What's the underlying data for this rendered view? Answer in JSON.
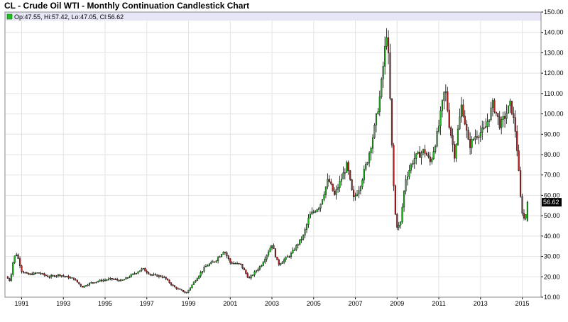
{
  "title": "CL - Crude Oil WTI - Monthly Continuation Candlestick Chart",
  "ohlc_summary": "Op:47.55, Hi:57.42, Lo:47.05, Cl:56.62",
  "last_price_label": "56.62",
  "colors": {
    "up": "#22bb22",
    "down": "#bb2222",
    "wick": "#000000",
    "grid": "#e3e3e3",
    "header_band": "#e6e6f7",
    "price_tag": "#000000"
  },
  "chart_data": {
    "type": "candlestick",
    "title": "CL - Crude Oil WTI - Monthly Continuation Candlestick Chart",
    "xlabel": "",
    "ylabel": "",
    "ylim": [
      10,
      150
    ],
    "xlim": [
      1990.2,
      2015.9
    ],
    "grid": true,
    "x_ticks": [
      "1991",
      "1993",
      "1995",
      "1997",
      "1999",
      "2001",
      "2003",
      "2005",
      "2007",
      "2009",
      "2011",
      "2013",
      "2015"
    ],
    "y_ticks": [
      "10.00",
      "20.00",
      "30.00",
      "40.00",
      "50.00",
      "60.00",
      "70.00",
      "80.00",
      "90.00",
      "100.00",
      "110.00",
      "120.00",
      "130.00",
      "140.00",
      "150.00"
    ],
    "last": {
      "open": 47.55,
      "high": 57.42,
      "low": 47.05,
      "close": 56.62
    },
    "series": [
      {
        "t": 1990.25,
        "close": 20
      },
      {
        "t": 1990.45,
        "close": 18
      },
      {
        "t": 1990.58,
        "close": 27
      },
      {
        "t": 1990.72,
        "close": 32
      },
      {
        "t": 1990.83,
        "close": 29
      },
      {
        "t": 1991.0,
        "close": 23
      },
      {
        "t": 1991.3,
        "close": 21
      },
      {
        "t": 1991.8,
        "close": 22
      },
      {
        "t": 1992.3,
        "close": 20
      },
      {
        "t": 1992.8,
        "close": 21
      },
      {
        "t": 1993.5,
        "close": 19
      },
      {
        "t": 1993.9,
        "close": 15
      },
      {
        "t": 1994.3,
        "close": 17
      },
      {
        "t": 1994.7,
        "close": 18
      },
      {
        "t": 1995.3,
        "close": 19
      },
      {
        "t": 1995.8,
        "close": 18
      },
      {
        "t": 1996.3,
        "close": 21
      },
      {
        "t": 1996.8,
        "close": 24
      },
      {
        "t": 1997.2,
        "close": 21
      },
      {
        "t": 1997.8,
        "close": 20
      },
      {
        "t": 1998.3,
        "close": 15
      },
      {
        "t": 1998.9,
        "close": 12
      },
      {
        "t": 1999.3,
        "close": 18
      },
      {
        "t": 1999.8,
        "close": 25
      },
      {
        "t": 2000.3,
        "close": 28
      },
      {
        "t": 2000.7,
        "close": 33
      },
      {
        "t": 2001.0,
        "close": 27
      },
      {
        "t": 2001.5,
        "close": 26
      },
      {
        "t": 2001.9,
        "close": 19
      },
      {
        "t": 2002.5,
        "close": 26
      },
      {
        "t": 2003.0,
        "close": 36
      },
      {
        "t": 2003.3,
        "close": 26
      },
      {
        "t": 2003.9,
        "close": 31
      },
      {
        "t": 2004.5,
        "close": 40
      },
      {
        "t": 2004.8,
        "close": 50
      },
      {
        "t": 2005.3,
        "close": 55
      },
      {
        "t": 2005.7,
        "close": 68
      },
      {
        "t": 2006.0,
        "close": 60
      },
      {
        "t": 2006.6,
        "close": 75
      },
      {
        "t": 2006.9,
        "close": 58
      },
      {
        "t": 2007.2,
        "close": 64
      },
      {
        "t": 2007.6,
        "close": 78
      },
      {
        "t": 2007.9,
        "close": 92
      },
      {
        "t": 2008.2,
        "close": 110
      },
      {
        "t": 2008.5,
        "close": 140
      },
      {
        "t": 2008.6,
        "close": 125
      },
      {
        "t": 2008.8,
        "close": 70
      },
      {
        "t": 2008.95,
        "close": 45
      },
      {
        "t": 2009.15,
        "close": 45
      },
      {
        "t": 2009.4,
        "close": 68
      },
      {
        "t": 2009.8,
        "close": 78
      },
      {
        "t": 2010.3,
        "close": 82
      },
      {
        "t": 2010.6,
        "close": 76
      },
      {
        "t": 2010.95,
        "close": 91
      },
      {
        "t": 2011.3,
        "close": 113
      },
      {
        "t": 2011.5,
        "close": 95
      },
      {
        "t": 2011.75,
        "close": 80
      },
      {
        "t": 2012.1,
        "close": 105
      },
      {
        "t": 2012.45,
        "close": 84
      },
      {
        "t": 2012.8,
        "close": 90
      },
      {
        "t": 2013.2,
        "close": 92
      },
      {
        "t": 2013.6,
        "close": 105
      },
      {
        "t": 2013.95,
        "close": 94
      },
      {
        "t": 2014.45,
        "close": 105
      },
      {
        "t": 2014.7,
        "close": 90
      },
      {
        "t": 2014.95,
        "close": 54
      },
      {
        "t": 2015.1,
        "close": 48
      },
      {
        "t": 2015.3,
        "close": 56.62
      }
    ]
  }
}
